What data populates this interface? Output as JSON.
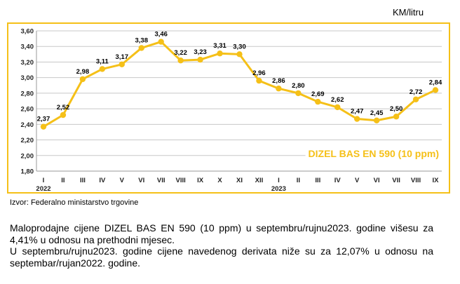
{
  "unit_label": "KM/litru",
  "source": "Izvor: Federalno  ministarstvo trgovine",
  "paragraphs": [
    "Maloprodajne cijene DIZEL BAS EN 590 (10 ppm) u septembru/rujnu2023. godine višesu za 4,41% u odnosu na prethodni mjesec.",
    "U septembru/rujnu2023. godine cijene navedenog derivata niže su za 12,07% u odnosu na septembar/rujan2022. godine."
  ],
  "chart_data": {
    "type": "line",
    "categories": [
      "I",
      "II",
      "III",
      "IV",
      "V",
      "VI",
      "VII",
      "VIII",
      "IX",
      "X",
      "XI",
      "XII",
      "I",
      "II",
      "III",
      "IV",
      "V",
      "VI",
      "VII",
      "VIII",
      "IX"
    ],
    "year_labels": [
      {
        "index": 0,
        "text": "2022"
      },
      {
        "index": 12,
        "text": "2023"
      }
    ],
    "series": [
      {
        "name": "DIZEL BAS EN 590 (10 ppm)",
        "values": [
          2.37,
          2.52,
          2.98,
          3.11,
          3.17,
          3.38,
          3.46,
          3.22,
          3.23,
          3.31,
          3.3,
          2.96,
          2.86,
          2.8,
          2.69,
          2.62,
          2.47,
          2.45,
          2.5,
          2.72,
          2.84
        ],
        "value_labels": [
          "2,37",
          "2,52",
          "2,98",
          "3,11",
          "3,17",
          "3,38",
          "3,46",
          "3,22",
          "3,23",
          "3,31",
          "3,30",
          "2,96",
          "2,86",
          "2,80",
          "2,69",
          "2,62",
          "2,47",
          "2,45",
          "2,50",
          "2,72",
          "2,84"
        ]
      }
    ],
    "y_ticks": [
      "1,80",
      "2,00",
      "2,20",
      "2,40",
      "2,60",
      "2,80",
      "3,00",
      "3,20",
      "3,40",
      "3,60"
    ],
    "ylim": [
      1.8,
      3.6
    ],
    "grid": true,
    "line_color": "#F5C018",
    "frame_color": "#F5C018",
    "grid_color": "#C8C8C8",
    "legend_position": "bottom-right"
  }
}
